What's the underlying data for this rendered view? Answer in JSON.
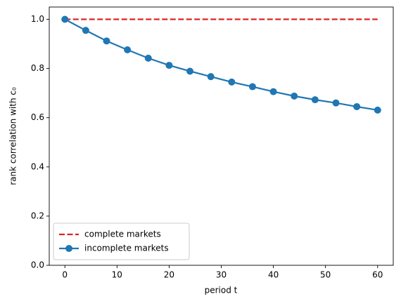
{
  "chart_data": {
    "type": "line",
    "xlabel": "period t",
    "ylabel": "rank correlation with c₀",
    "x": [
      0,
      4,
      8,
      12,
      16,
      20,
      24,
      28,
      32,
      36,
      40,
      44,
      48,
      52,
      56,
      60
    ],
    "series": [
      {
        "name": "complete markets",
        "color": "#d62728",
        "dashed": true,
        "marker": false,
        "values": [
          1.0,
          1.0,
          1.0,
          1.0,
          1.0,
          1.0,
          1.0,
          1.0,
          1.0,
          1.0,
          1.0,
          1.0,
          1.0,
          1.0,
          1.0,
          1.0
        ]
      },
      {
        "name": "incomplete markets",
        "color": "#1f77b4",
        "dashed": false,
        "marker": true,
        "values": [
          1.0,
          0.955,
          0.912,
          0.876,
          0.842,
          0.813,
          0.789,
          0.767,
          0.745,
          0.726,
          0.706,
          0.688,
          0.673,
          0.66,
          0.645,
          0.631
        ]
      }
    ],
    "xlim": [
      -3,
      63
    ],
    "xticks": [
      0,
      10,
      20,
      30,
      40,
      50,
      60
    ],
    "ylim": [
      0,
      1.05
    ],
    "yticks": [
      {
        "value": 0,
        "label": "0.0"
      },
      0.2,
      0.4,
      0.6,
      0.8,
      {
        "value": 1,
        "label": "1.0"
      }
    ],
    "grid": false,
    "legend": "lower left"
  }
}
